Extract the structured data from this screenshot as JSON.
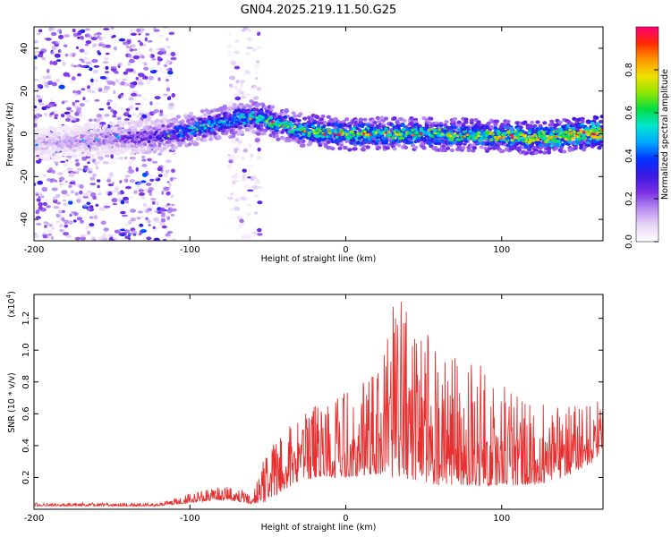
{
  "title": "GN04.2025.219.11.50.G25",
  "colors": {
    "snr_line": "#e83030",
    "axis": "#000000",
    "colorbar_stops": [
      "#ffffff",
      "#e9d6f7",
      "#b78cf0",
      "#7a2fe6",
      "#3b17e0",
      "#0033ff",
      "#00a8ff",
      "#00e5d0",
      "#00dd44",
      "#8ee600",
      "#f0e000",
      "#ff9900",
      "#ff2a00",
      "#ff0077"
    ]
  },
  "chart_data": [
    {
      "type": "heatmap",
      "xlabel": "Height of straight line (km)",
      "ylabel": "Frequency (Hz)",
      "xlim": [
        -200,
        165
      ],
      "ylim": [
        -50,
        50
      ],
      "xticks": [
        -200,
        -100,
        0,
        100
      ],
      "yticks": [
        -40,
        -20,
        0,
        20,
        40
      ],
      "colorbar": {
        "label": "Normalized spectral amplitude",
        "range": [
          0,
          1
        ],
        "ticks": [
          "0.0",
          "0.2",
          "0.4",
          "0.6",
          "0.8"
        ],
        "tick_values": [
          0.0,
          0.2,
          0.4,
          0.6,
          0.8
        ]
      },
      "ridge": {
        "x": [
          -200,
          -150,
          -120,
          -100,
          -80,
          -60,
          -50,
          -40,
          -30,
          -20,
          0,
          50,
          100,
          120,
          140,
          165
        ],
        "hz": [
          -5,
          -2,
          -1,
          2,
          5,
          8,
          6,
          4,
          2,
          1,
          0,
          0,
          -1,
          -2,
          -1,
          1
        ],
        "peak_amplitude": [
          0.1,
          0.18,
          0.3,
          0.42,
          0.45,
          0.5,
          0.55,
          0.55,
          0.58,
          0.6,
          0.6,
          0.62,
          0.65,
          0.7,
          0.75,
          0.8
        ]
      },
      "noise_regions": [
        {
          "x": [
            -200,
            -110
          ],
          "hz": [
            -50,
            50
          ],
          "level": 0.15
        },
        {
          "x": [
            -75,
            -55
          ],
          "hz": [
            -50,
            50
          ],
          "level": 0.08
        }
      ]
    },
    {
      "type": "line",
      "xlabel": "Height of straight line (km)",
      "ylabel": "SNR (10 * v/v)",
      "y_multiplier_label": "(x10",
      "y_multiplier_exponent": "4",
      "y_multiplier_close": ")",
      "xlim": [
        -200,
        165
      ],
      "ylim": [
        0,
        1.35
      ],
      "xticks": [
        -200,
        -100,
        0,
        100
      ],
      "yticks": [
        "0.2",
        "0.4",
        "0.6",
        "0.8",
        "1.0",
        "1.2"
      ],
      "ytick_values": [
        0.2,
        0.4,
        0.6,
        0.8,
        1.0,
        1.2
      ],
      "envelope": {
        "x": [
          -200,
          -120,
          -100,
          -80,
          -70,
          -60,
          -50,
          -35,
          -20,
          0,
          20,
          30,
          45,
          60,
          80,
          100,
          120,
          140,
          160,
          165
        ],
        "base": [
          0.02,
          0.02,
          0.04,
          0.06,
          0.05,
          0.03,
          0.05,
          0.15,
          0.2,
          0.2,
          0.22,
          0.2,
          0.18,
          0.15,
          0.15,
          0.15,
          0.15,
          0.2,
          0.3,
          0.4
        ],
        "peak": [
          0.04,
          0.04,
          0.1,
          0.14,
          0.15,
          0.08,
          0.4,
          0.55,
          0.65,
          0.75,
          0.85,
          1.35,
          1.3,
          0.95,
          0.95,
          0.8,
          0.7,
          0.65,
          0.65,
          0.9
        ]
      }
    }
  ]
}
